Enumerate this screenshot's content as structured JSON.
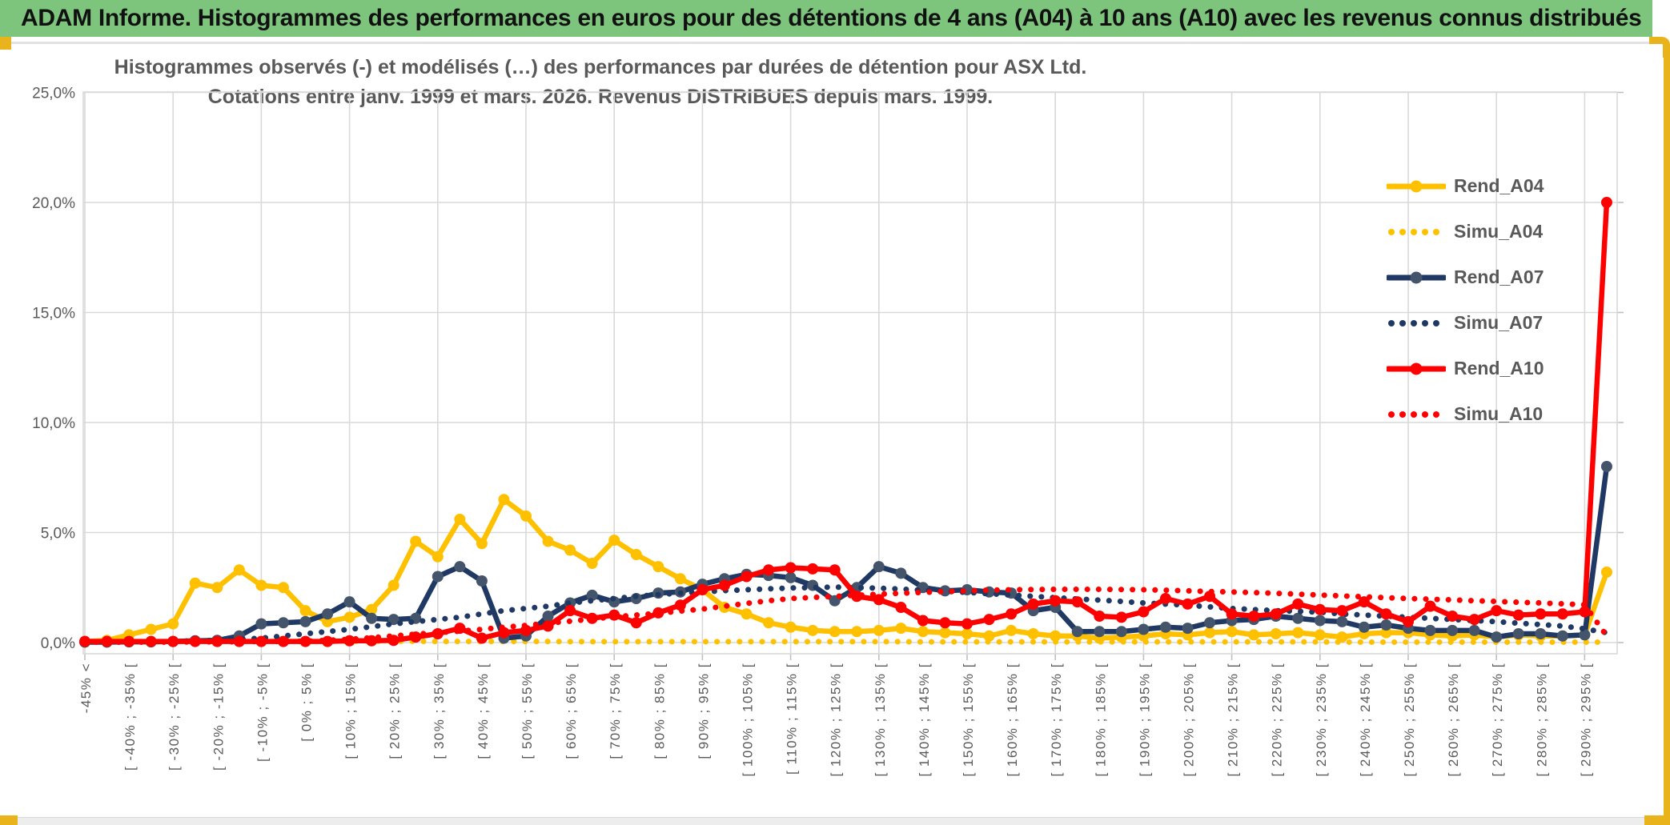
{
  "banner": {
    "title": "ADAM Informe. Histogrammes des performances en euros pour des détentions de 4 ans (A04) à 10 ans (A10) avec les revenus connus distribués",
    "bg_color": "#7DC57D"
  },
  "frame": {
    "accent_color": "#E9B31C"
  },
  "chart": {
    "title_line1": "Histogrammes observés (-) et modélisés (…) des performances par durées de détention pour ASX Ltd.",
    "title_line2": "Cotations entre janv. 1999 et mars. 2026. Revenus DISTRIBUES depuis mars. 1999.",
    "text_color": "#595959",
    "grid_color": "#D9D9D9"
  },
  "chart_data": {
    "type": "line",
    "title": "Histogrammes observés (-) et modélisés (…) des performances par durées de détention pour ASX Ltd. Cotations entre janv. 1999 et mars. 2026. Revenus DISTRIBUES depuis mars. 1999.",
    "xlabel": "",
    "ylabel": "",
    "ylim": [
      0,
      25
    ],
    "grid": true,
    "legend_position": "inside-top-right",
    "y_ticks": [
      {
        "label": "25,0%",
        "value": 25
      },
      {
        "label": "20,0%",
        "value": 20
      },
      {
        "label": "15,0%",
        "value": 15
      },
      {
        "label": "10,0%",
        "value": 10
      },
      {
        "label": "5,0%",
        "value": 5
      },
      {
        "label": "0,0%",
        "value": 0
      }
    ],
    "x_categories": [
      "-45% <",
      "",
      "[ -40% ; -35% [",
      "",
      "[ -30% ; -25% [",
      "",
      "[ -20% ; -15% [",
      "",
      "[ -10% ; -5% [",
      "",
      "[ 0% ; 5% [",
      "",
      "[ 10% ; 15% [",
      "",
      "[ 20% ; 25% [",
      "",
      "[ 30% ; 35% [",
      "",
      "[ 40% ; 45% [",
      "",
      "[ 50% ; 55% [",
      "",
      "[ 60% ; 65% [",
      "",
      "[ 70% ; 75% [",
      "",
      "[ 80% ; 85% [",
      "",
      "[ 90% ; 95% [",
      "",
      "[ 100% ; 105% [",
      "",
      "[ 110% ; 115% [",
      "",
      "[ 120% ; 125% [",
      "",
      "[ 130% ; 135% [",
      "",
      "[ 140% ; 145% [",
      "",
      "[ 150% ; 155% [",
      "",
      "[ 160% ; 165% [",
      "",
      "[ 170% ; 175% [",
      "",
      "[ 180% ; 185% [",
      "",
      "[ 190% ; 195% [",
      "",
      "[ 200% ; 205% [",
      "",
      "[ 210% ; 215% [",
      "",
      "[ 220% ; 225% [",
      "",
      "[ 230% ; 235% [",
      "",
      "[ 240% ; 245% [",
      "",
      "[ 250% ; 255% [",
      "",
      "[ 260% ; 265% [",
      "",
      "[ 270% ; 275% [",
      "",
      "[ 280% ; 285% [",
      "",
      "[ 290% ; 295% [",
      ""
    ],
    "series": [
      {
        "name": "Rend_A04",
        "style": "solid",
        "color": "#FFC000",
        "marker_color": "#FFC000",
        "values": [
          0.05,
          0.1,
          0.35,
          0.6,
          0.85,
          2.7,
          2.5,
          3.3,
          2.6,
          2.5,
          1.45,
          0.95,
          1.15,
          1.5,
          2.6,
          4.6,
          3.9,
          5.6,
          4.5,
          6.5,
          5.75,
          4.6,
          4.2,
          3.6,
          4.65,
          4.0,
          3.45,
          2.9,
          2.4,
          1.6,
          1.3,
          0.9,
          0.7,
          0.55,
          0.5,
          0.5,
          0.55,
          0.65,
          0.5,
          0.45,
          0.4,
          0.3,
          0.55,
          0.4,
          0.3,
          0.3,
          0.2,
          0.25,
          0.3,
          0.4,
          0.35,
          0.45,
          0.5,
          0.35,
          0.4,
          0.45,
          0.35,
          0.25,
          0.4,
          0.45,
          0.45,
          0.35,
          0.3,
          0.35,
          0.25,
          0.35,
          0.3,
          0.3,
          0.35,
          3.2
        ]
      },
      {
        "name": "Simu_A04",
        "style": "dotted",
        "color": "#FFC000",
        "values": [
          0.02,
          0.02,
          0.02,
          0.03,
          0.03,
          0.04,
          0.04,
          0.05,
          0.05,
          0.05,
          0.06,
          0.06,
          0.06,
          0.06,
          0.06,
          0.06,
          0.05,
          0.05,
          0.05,
          0.05,
          0.05,
          0.05,
          0.04,
          0.04,
          0.04,
          0.04,
          0.04,
          0.04,
          0.04,
          0.04,
          0.04,
          0.04,
          0.04,
          0.04,
          0.04,
          0.04,
          0.04,
          0.04,
          0.03,
          0.03,
          0.03,
          0.03,
          0.03,
          0.03,
          0.03,
          0.03,
          0.03,
          0.03,
          0.03,
          0.03,
          0.03,
          0.03,
          0.03,
          0.03,
          0.03,
          0.03,
          0.03,
          0.02,
          0.02,
          0.02,
          0.02,
          0.02,
          0.02,
          0.02,
          0.02,
          0.02,
          0.02,
          0.02,
          0.02,
          0.02
        ]
      },
      {
        "name": "Rend_A07",
        "style": "solid",
        "color": "#1F3864",
        "marker_color": "#44546A",
        "values": [
          0.02,
          0.02,
          0.03,
          0.03,
          0.05,
          0.08,
          0.1,
          0.3,
          0.85,
          0.9,
          0.95,
          1.3,
          1.85,
          1.1,
          1.05,
          1.1,
          3.0,
          3.45,
          2.8,
          0.2,
          0.3,
          1.2,
          1.8,
          2.15,
          1.85,
          2.0,
          2.25,
          2.3,
          2.65,
          2.9,
          3.1,
          3.05,
          2.95,
          2.6,
          1.9,
          2.5,
          3.45,
          3.15,
          2.5,
          2.35,
          2.4,
          2.3,
          2.25,
          1.45,
          1.6,
          0.5,
          0.5,
          0.5,
          0.6,
          0.7,
          0.65,
          0.9,
          1.0,
          1.05,
          1.2,
          1.1,
          1.0,
          0.95,
          0.7,
          0.8,
          0.65,
          0.55,
          0.55,
          0.55,
          0.25,
          0.4,
          0.4,
          0.3,
          0.35,
          8.0
        ]
      },
      {
        "name": "Simu_A07",
        "style": "dotted",
        "color": "#1F3864",
        "values": [
          0.02,
          0.02,
          0.02,
          0.03,
          0.05,
          0.08,
          0.1,
          0.15,
          0.2,
          0.3,
          0.4,
          0.5,
          0.6,
          0.72,
          0.85,
          0.95,
          1.05,
          1.15,
          1.3,
          1.45,
          1.55,
          1.65,
          1.8,
          1.9,
          2.0,
          2.1,
          2.18,
          2.25,
          2.3,
          2.36,
          2.4,
          2.44,
          2.48,
          2.5,
          2.52,
          2.5,
          2.47,
          2.43,
          2.38,
          2.33,
          2.28,
          2.22,
          2.16,
          2.1,
          2.04,
          1.98,
          1.93,
          1.87,
          1.8,
          1.75,
          1.7,
          1.62,
          1.55,
          1.5,
          1.45,
          1.42,
          1.38,
          1.3,
          1.25,
          1.2,
          1.15,
          1.1,
          1.05,
          1.0,
          0.95,
          0.88,
          0.82,
          0.75,
          0.62,
          0.45
        ]
      },
      {
        "name": "Rend_A10",
        "style": "solid",
        "color": "#FF0000",
        "marker_color": "#FF0000",
        "values": [
          0.05,
          0.05,
          0.05,
          0.05,
          0.05,
          0.05,
          0.05,
          0.05,
          0.05,
          0.05,
          0.05,
          0.05,
          0.08,
          0.08,
          0.1,
          0.25,
          0.4,
          0.65,
          0.2,
          0.45,
          0.55,
          0.75,
          1.45,
          1.1,
          1.25,
          0.9,
          1.35,
          1.7,
          2.4,
          2.6,
          3.0,
          3.3,
          3.4,
          3.35,
          3.3,
          2.1,
          1.95,
          1.6,
          1.0,
          0.9,
          0.85,
          1.05,
          1.3,
          1.75,
          1.9,
          1.85,
          1.2,
          1.15,
          1.4,
          2.0,
          1.75,
          2.1,
          1.3,
          1.2,
          1.3,
          1.75,
          1.5,
          1.45,
          1.85,
          1.3,
          0.95,
          1.65,
          1.2,
          1.05,
          1.45,
          1.25,
          1.3,
          1.3,
          1.4,
          20.0
        ]
      },
      {
        "name": "Simu_A10",
        "style": "dotted",
        "color": "#FF0000",
        "values": [
          0.02,
          0.02,
          0.02,
          0.02,
          0.02,
          0.03,
          0.03,
          0.04,
          0.05,
          0.05,
          0.06,
          0.1,
          0.15,
          0.22,
          0.3,
          0.38,
          0.45,
          0.52,
          0.6,
          0.7,
          0.78,
          0.88,
          0.97,
          1.07,
          1.17,
          1.25,
          1.33,
          1.43,
          1.52,
          1.65,
          1.78,
          1.9,
          2.0,
          2.05,
          2.1,
          2.15,
          2.2,
          2.24,
          2.28,
          2.32,
          2.35,
          2.38,
          2.4,
          2.41,
          2.42,
          2.42,
          2.42,
          2.41,
          2.4,
          2.38,
          2.35,
          2.32,
          2.3,
          2.27,
          2.24,
          2.2,
          2.16,
          2.12,
          2.08,
          2.04,
          2.0,
          1.97,
          1.94,
          1.9,
          1.87,
          1.83,
          1.8,
          1.76,
          1.72,
          0.3
        ]
      }
    ]
  }
}
